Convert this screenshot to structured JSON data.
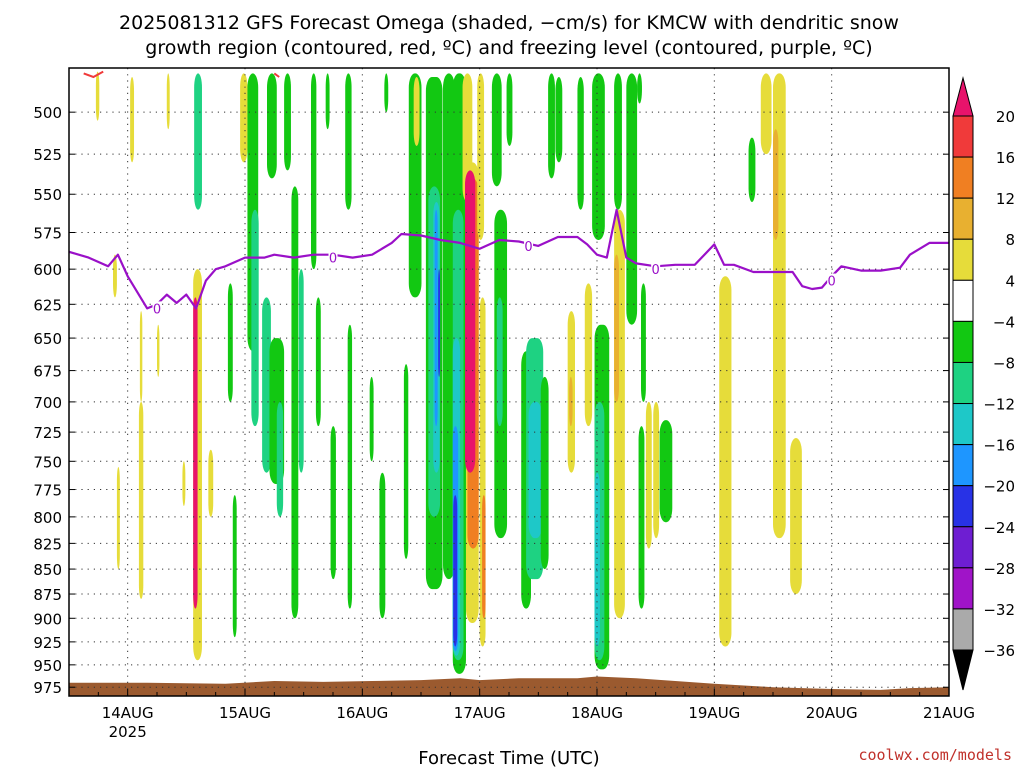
{
  "chart_data": {
    "type": "heatmap",
    "title_lines": [
      "2025081312 GFS Forecast Omega (shaded, −cm/s) for KMCW with dendritic snow",
      "growth region (contoured, red, ºC) and freezing level (contoured, purple, ºC)"
    ],
    "xlabel": "Forecast Time (UTC)",
    "x_ticks": [
      {
        "t": 0,
        "label": "14AUG",
        "sub": "2025"
      },
      {
        "t": 24,
        "label": "15AUG",
        "sub": ""
      },
      {
        "t": 48,
        "label": "16AUG",
        "sub": ""
      },
      {
        "t": 72,
        "label": "17AUG",
        "sub": ""
      },
      {
        "t": 96,
        "label": "18AUG",
        "sub": ""
      },
      {
        "t": 120,
        "label": "19AUG",
        "sub": ""
      },
      {
        "t": 144,
        "label": "20AUG",
        "sub": ""
      },
      {
        "t": 168,
        "label": "21AUG",
        "sub": ""
      }
    ],
    "xlim": [
      -12,
      168
    ],
    "ylim": [
      475,
      985
    ],
    "y_scale": "log-pressure",
    "y_ticks": [
      500,
      525,
      550,
      575,
      600,
      625,
      650,
      675,
      700,
      725,
      750,
      775,
      800,
      825,
      850,
      875,
      900,
      925,
      950,
      975
    ],
    "grid": true,
    "colorbar": {
      "labels": [
        "20",
        "16",
        "12",
        "8",
        "4",
        "−4",
        "−8",
        "−12",
        "−16",
        "−20",
        "−24",
        "−28",
        "−32",
        "−36"
      ],
      "colors": [
        "#e8136b",
        "#f03a3a",
        "#f07f22",
        "#e8b030",
        "#e6dc3a",
        "#ffffff",
        "#12c812",
        "#1ed282",
        "#1ec8c8",
        "#1e96ff",
        "#2832e6",
        "#6e1ed2",
        "#a014c8",
        "#aaaaaa",
        "#000000"
      ]
    },
    "freezing_level": {
      "label": "0",
      "color": "#9a10c8",
      "points": [
        [
          -12,
          588
        ],
        [
          -8,
          592
        ],
        [
          -4,
          598
        ],
        [
          -2,
          590
        ],
        [
          0,
          605
        ],
        [
          4,
          628
        ],
        [
          6,
          625
        ],
        [
          8,
          618
        ],
        [
          10,
          624
        ],
        [
          12,
          618
        ],
        [
          14,
          628
        ],
        [
          16,
          608
        ],
        [
          18,
          600
        ],
        [
          20,
          598
        ],
        [
          24,
          592
        ],
        [
          28,
          592
        ],
        [
          30,
          590
        ],
        [
          34,
          592
        ],
        [
          38,
          590
        ],
        [
          42,
          590
        ],
        [
          46,
          592
        ],
        [
          50,
          590
        ],
        [
          54,
          582
        ],
        [
          56,
          576
        ],
        [
          60,
          577
        ],
        [
          64,
          580
        ],
        [
          68,
          582
        ],
        [
          72,
          586
        ],
        [
          76,
          580
        ],
        [
          80,
          581
        ],
        [
          84,
          584
        ],
        [
          88,
          578
        ],
        [
          92,
          578
        ],
        [
          94,
          583
        ],
        [
          96,
          590
        ],
        [
          98,
          592
        ],
        [
          100,
          560
        ],
        [
          102,
          592
        ],
        [
          104,
          596
        ],
        [
          108,
          598
        ],
        [
          112,
          597
        ],
        [
          116,
          597
        ],
        [
          120,
          583
        ],
        [
          122,
          597
        ],
        [
          124,
          597
        ],
        [
          128,
          602
        ],
        [
          132,
          602
        ],
        [
          136,
          602
        ],
        [
          138,
          612
        ],
        [
          140,
          614
        ],
        [
          142,
          613
        ],
        [
          144,
          605
        ],
        [
          146,
          598
        ],
        [
          150,
          601
        ],
        [
          154,
          601
        ],
        [
          158,
          599
        ],
        [
          160,
          590
        ],
        [
          164,
          582
        ],
        [
          168,
          582
        ]
      ],
      "label_at": [
        [
          6,
          628
        ],
        [
          42,
          592
        ],
        [
          82,
          584
        ],
        [
          108,
          600
        ],
        [
          144,
          608
        ]
      ]
    },
    "snow_growth_contours": [
      {
        "color": "#f03a3a",
        "points": [
          [
            -9,
            478
          ],
          [
            -7,
            480
          ],
          [
            -5,
            477
          ]
        ]
      },
      {
        "color": "#f03a3a",
        "points": [
          [
            30,
            478
          ],
          [
            31,
            480
          ]
        ]
      }
    ],
    "omega_blobs": [
      {
        "t": -6.5,
        "dt": 0.7,
        "p0": 477,
        "p1": 505,
        "c": "#e6dc3a"
      },
      {
        "t": -3,
        "dt": 0.8,
        "p0": 590,
        "p1": 620,
        "c": "#e6dc3a"
      },
      {
        "t": -2.2,
        "dt": 0.6,
        "p0": 755,
        "p1": 850,
        "c": "#e6dc3a"
      },
      {
        "t": 0.5,
        "dt": 0.8,
        "p0": 480,
        "p1": 530,
        "c": "#e6dc3a"
      },
      {
        "t": 2.3,
        "dt": 0.9,
        "p0": 700,
        "p1": 880,
        "c": "#e6dc3a"
      },
      {
        "t": 2.5,
        "dt": 0.5,
        "p0": 630,
        "p1": 700,
        "c": "#e6dc3a"
      },
      {
        "t": 6.0,
        "dt": 0.5,
        "p0": 640,
        "p1": 680,
        "c": "#e6dc3a"
      },
      {
        "t": 8,
        "dt": 0.6,
        "p0": 478,
        "p1": 510,
        "c": "#e6dc3a"
      },
      {
        "t": 11.2,
        "dt": 0.6,
        "p0": 750,
        "p1": 790,
        "c": "#e6dc3a"
      },
      {
        "t": 13.6,
        "dt": 1.6,
        "p0": 478,
        "p1": 560,
        "c": "#1ed282"
      },
      {
        "t": 13.4,
        "dt": 1.8,
        "p0": 600,
        "p1": 945,
        "c": "#e6dc3a"
      },
      {
        "t": 13.4,
        "dt": 0.9,
        "p0": 620,
        "p1": 890,
        "c": "#e8136b"
      },
      {
        "t": 16.5,
        "dt": 1.0,
        "p0": 740,
        "p1": 800,
        "c": "#e6dc3a"
      },
      {
        "t": 20.5,
        "dt": 1.0,
        "p0": 610,
        "p1": 700,
        "c": "#12c812"
      },
      {
        "t": 21.5,
        "dt": 0.8,
        "p0": 780,
        "p1": 920,
        "c": "#12c812"
      },
      {
        "t": 23,
        "dt": 1.5,
        "p0": 478,
        "p1": 530,
        "c": "#e6dc3a"
      },
      {
        "t": 24.5,
        "dt": 2.2,
        "p0": 478,
        "p1": 660,
        "c": "#12c812"
      },
      {
        "t": 25.3,
        "dt": 1.5,
        "p0": 560,
        "p1": 720,
        "c": "#1ed282"
      },
      {
        "t": 27.5,
        "dt": 1.8,
        "p0": 620,
        "p1": 760,
        "c": "#1ed282"
      },
      {
        "t": 28.5,
        "dt": 2.0,
        "p0": 478,
        "p1": 540,
        "c": "#12c812"
      },
      {
        "t": 29.0,
        "dt": 3.0,
        "p0": 650,
        "p1": 770,
        "c": "#12c812"
      },
      {
        "t": 30.5,
        "dt": 1.3,
        "p0": 700,
        "p1": 800,
        "c": "#1ed282"
      },
      {
        "t": 32.0,
        "dt": 1.4,
        "p0": 478,
        "p1": 535,
        "c": "#12c812"
      },
      {
        "t": 33.5,
        "dt": 1.4,
        "p0": 545,
        "p1": 900,
        "c": "#12c812"
      },
      {
        "t": 35.0,
        "dt": 1.0,
        "p0": 600,
        "p1": 760,
        "c": "#1ed282"
      },
      {
        "t": 37.5,
        "dt": 1.1,
        "p0": 478,
        "p1": 600,
        "c": "#12c812"
      },
      {
        "t": 38.5,
        "dt": 1.0,
        "p0": 620,
        "p1": 720,
        "c": "#12c812"
      },
      {
        "t": 40.5,
        "dt": 0.8,
        "p0": 478,
        "p1": 510,
        "c": "#12c812"
      },
      {
        "t": 41.5,
        "dt": 1.1,
        "p0": 720,
        "p1": 860,
        "c": "#12c812"
      },
      {
        "t": 44.5,
        "dt": 1.3,
        "p0": 478,
        "p1": 560,
        "c": "#12c812"
      },
      {
        "t": 45,
        "dt": 0.9,
        "p0": 640,
        "p1": 890,
        "c": "#12c812"
      },
      {
        "t": 49.5,
        "dt": 0.8,
        "p0": 680,
        "p1": 750,
        "c": "#12c812"
      },
      {
        "t": 51.5,
        "dt": 1.2,
        "p0": 760,
        "p1": 900,
        "c": "#12c812"
      },
      {
        "t": 52.5,
        "dt": 0.8,
        "p0": 478,
        "p1": 500,
        "c": "#12c812"
      },
      {
        "t": 56.5,
        "dt": 0.9,
        "p0": 670,
        "p1": 840,
        "c": "#12c812"
      },
      {
        "t": 57.5,
        "dt": 2.6,
        "p0": 478,
        "p1": 620,
        "c": "#12c812"
      },
      {
        "t": 58.5,
        "dt": 1.2,
        "p0": 480,
        "p1": 520,
        "c": "#e6dc3a"
      },
      {
        "t": 61.0,
        "dt": 3.4,
        "p0": 480,
        "p1": 870,
        "c": "#12c812"
      },
      {
        "t": 61.5,
        "dt": 2.4,
        "p0": 545,
        "p1": 800,
        "c": "#1ed282"
      },
      {
        "t": 62.5,
        "dt": 1.3,
        "p0": 555,
        "p1": 760,
        "c": "#1ec8c8"
      },
      {
        "t": 62.8,
        "dt": 0.6,
        "p0": 560,
        "p1": 720,
        "c": "#1e96ff"
      },
      {
        "t": 63.5,
        "dt": 0.4,
        "p0": 600,
        "p1": 680,
        "c": "#2832e6"
      },
      {
        "t": 64.5,
        "dt": 2.4,
        "p0": 478,
        "p1": 860,
        "c": "#12c812"
      },
      {
        "t": 66.5,
        "dt": 2.7,
        "p0": 478,
        "p1": 960,
        "c": "#12c812"
      },
      {
        "t": 66.5,
        "dt": 2.2,
        "p0": 560,
        "p1": 945,
        "c": "#1ed282"
      },
      {
        "t": 66.5,
        "dt": 1.5,
        "p0": 650,
        "p1": 940,
        "c": "#1ec8c8"
      },
      {
        "t": 66.5,
        "dt": 1.1,
        "p0": 720,
        "p1": 935,
        "c": "#1e96ff"
      },
      {
        "t": 66.6,
        "dt": 0.8,
        "p0": 780,
        "p1": 930,
        "c": "#2832e6"
      },
      {
        "t": 68.5,
        "dt": 2.0,
        "p0": 478,
        "p1": 555,
        "c": "#e6dc3a"
      },
      {
        "t": 69.2,
        "dt": 2.6,
        "p0": 530,
        "p1": 905,
        "c": "#e6dc3a"
      },
      {
        "t": 69.5,
        "dt": 2.3,
        "p0": 540,
        "p1": 830,
        "c": "#f07f22"
      },
      {
        "t": 69.0,
        "dt": 2.1,
        "p0": 535,
        "p1": 760,
        "c": "#e8136b"
      },
      {
        "t": 71.5,
        "dt": 1.4,
        "p0": 478,
        "p1": 580,
        "c": "#e6dc3a"
      },
      {
        "t": 72,
        "dt": 1.2,
        "p0": 620,
        "p1": 930,
        "c": "#e6dc3a"
      },
      {
        "t": 72.5,
        "dt": 0.7,
        "p0": 780,
        "p1": 900,
        "c": "#f07f22"
      },
      {
        "t": 74.5,
        "dt": 2.0,
        "p0": 478,
        "p1": 545,
        "c": "#12c812"
      },
      {
        "t": 75.0,
        "dt": 2.6,
        "p0": 560,
        "p1": 820,
        "c": "#12c812"
      },
      {
        "t": 75.5,
        "dt": 1.2,
        "p0": 620,
        "p1": 720,
        "c": "#1ed282"
      },
      {
        "t": 77.5,
        "dt": 1.2,
        "p0": 478,
        "p1": 520,
        "c": "#12c812"
      },
      {
        "t": 80.5,
        "dt": 2.0,
        "p0": 660,
        "p1": 890,
        "c": "#12c812"
      },
      {
        "t": 81.5,
        "dt": 3.5,
        "p0": 650,
        "p1": 860,
        "c": "#1ed282"
      },
      {
        "t": 82.0,
        "dt": 2.8,
        "p0": 700,
        "p1": 820,
        "c": "#1ec8c8"
      },
      {
        "t": 84.5,
        "dt": 1.6,
        "p0": 680,
        "p1": 850,
        "c": "#12c812"
      },
      {
        "t": 86.0,
        "dt": 1.4,
        "p0": 478,
        "p1": 540,
        "c": "#12c812"
      },
      {
        "t": 87.5,
        "dt": 1.4,
        "p0": 480,
        "p1": 530,
        "c": "#12c812"
      },
      {
        "t": 90.0,
        "dt": 1.5,
        "p0": 630,
        "p1": 760,
        "c": "#e6dc3a"
      },
      {
        "t": 90.3,
        "dt": 0.7,
        "p0": 680,
        "p1": 720,
        "c": "#e8b030"
      },
      {
        "t": 92.0,
        "dt": 1.3,
        "p0": 480,
        "p1": 560,
        "c": "#12c812"
      },
      {
        "t": 93.5,
        "dt": 1.5,
        "p0": 610,
        "p1": 720,
        "c": "#e6dc3a"
      },
      {
        "t": 95.0,
        "dt": 2.6,
        "p0": 478,
        "p1": 580,
        "c": "#12c812"
      },
      {
        "t": 95.5,
        "dt": 3.0,
        "p0": 640,
        "p1": 955,
        "c": "#12c812"
      },
      {
        "t": 95.5,
        "dt": 2.0,
        "p0": 700,
        "p1": 945,
        "c": "#1ed282"
      },
      {
        "t": 95.5,
        "dt": 1.1,
        "p0": 760,
        "p1": 930,
        "c": "#1ec8c8"
      },
      {
        "t": 99.5,
        "dt": 1.6,
        "p0": 478,
        "p1": 560,
        "c": "#12c812"
      },
      {
        "t": 99.5,
        "dt": 2.2,
        "p0": 560,
        "p1": 900,
        "c": "#e6dc3a"
      },
      {
        "t": 99.5,
        "dt": 1.0,
        "p0": 590,
        "p1": 700,
        "c": "#e8b030"
      },
      {
        "t": 102.0,
        "dt": 2.2,
        "p0": 478,
        "p1": 640,
        "c": "#12c812"
      },
      {
        "t": 104.5,
        "dt": 1.2,
        "p0": 720,
        "p1": 890,
        "c": "#12c812"
      },
      {
        "t": 105.0,
        "dt": 1.0,
        "p0": 610,
        "p1": 700,
        "c": "#12c812"
      },
      {
        "t": 104.2,
        "dt": 1.0,
        "p0": 478,
        "p1": 495,
        "c": "#12c812"
      },
      {
        "t": 106.0,
        "dt": 1.2,
        "p0": 700,
        "p1": 830,
        "c": "#e6dc3a"
      },
      {
        "t": 107.5,
        "dt": 1.2,
        "p0": 700,
        "p1": 820,
        "c": "#e6dc3a"
      },
      {
        "t": 108.8,
        "dt": 2.6,
        "p0": 715,
        "p1": 805,
        "c": "#12c812"
      },
      {
        "t": 121.0,
        "dt": 2.5,
        "p0": 605,
        "p1": 930,
        "c": "#e6dc3a"
      },
      {
        "t": 127.0,
        "dt": 1.4,
        "p0": 515,
        "p1": 555,
        "c": "#12c812"
      },
      {
        "t": 129.5,
        "dt": 2.2,
        "p0": 478,
        "p1": 525,
        "c": "#e6dc3a"
      },
      {
        "t": 132.0,
        "dt": 2.6,
        "p0": 478,
        "p1": 820,
        "c": "#e6dc3a"
      },
      {
        "t": 132.0,
        "dt": 1.1,
        "p0": 510,
        "p1": 580,
        "c": "#e8b030"
      },
      {
        "t": 135.5,
        "dt": 2.4,
        "p0": 730,
        "p1": 875,
        "c": "#e6dc3a"
      }
    ],
    "surface": {
      "color": "#9b5a2f",
      "points": [
        [
          -12,
          970
        ],
        [
          4,
          970
        ],
        [
          20,
          971
        ],
        [
          30,
          968
        ],
        [
          40,
          969
        ],
        [
          50,
          968
        ],
        [
          60,
          967
        ],
        [
          68,
          965
        ],
        [
          72,
          967
        ],
        [
          80,
          965
        ],
        [
          92,
          965
        ],
        [
          96,
          963
        ],
        [
          104,
          965
        ],
        [
          112,
          968
        ],
        [
          120,
          971
        ],
        [
          132,
          975
        ],
        [
          144,
          977
        ],
        [
          154,
          978
        ],
        [
          160,
          976
        ],
        [
          168,
          975
        ]
      ]
    }
  },
  "credit": "coolwx.com/models"
}
